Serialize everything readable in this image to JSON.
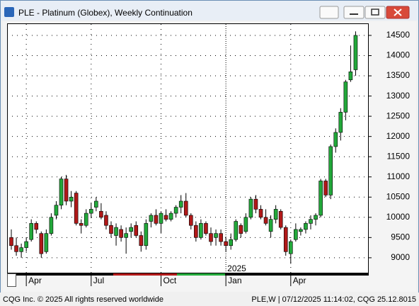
{
  "window_title": "PLE - Platinum (Globex), Weekly Continuation",
  "footer_left": "CQG Inc. © 2025 All rights reserved worldwide",
  "footer_right": "PLE,W | 07/12/2025 11:14:02, CQG 25.12.8015",
  "chart_data": {
    "type": "candlestick",
    "year_label": "2025",
    "categories": [
      null,
      null,
      null,
      "Apr",
      null,
      null,
      null,
      null,
      null,
      null,
      null,
      null,
      null,
      null,
      null,
      null,
      "Jul",
      null,
      null,
      null,
      null,
      null,
      null,
      null,
      null,
      null,
      null,
      null,
      null,
      null,
      "Oct",
      null,
      null,
      null,
      null,
      null,
      null,
      null,
      null,
      null,
      null,
      null,
      null,
      "Jan",
      null,
      null,
      null,
      null,
      null,
      null,
      null,
      null,
      null,
      null,
      null,
      null,
      "Apr",
      null,
      null,
      null,
      null,
      null,
      null,
      null,
      null,
      null,
      null,
      null,
      null,
      null
    ],
    "open": [
      9500,
      9300,
      9150,
      9250,
      9450,
      9850,
      9600,
      9150,
      9600,
      10050,
      10300,
      10950,
      10400,
      10600,
      9850,
      9800,
      10100,
      10250,
      10150,
      10050,
      9800,
      9550,
      9700,
      9500,
      9650,
      9800,
      9550,
      9300,
      9900,
      10050,
      9850,
      10050,
      9950,
      10100,
      10250,
      10400,
      10050,
      9800,
      9500,
      9850,
      9600,
      9500,
      9600,
      9400,
      9300,
      9450,
      9800,
      9650,
      10000,
      10450,
      10200,
      10000,
      9650,
      9950,
      10150,
      9750,
      9100,
      9450,
      9650,
      9700,
      9850,
      9950,
      10050,
      10900,
      10550,
      11750,
      12100,
      12600,
      13400,
      13650
    ],
    "high": [
      9700,
      9500,
      9350,
      9500,
      9950,
      9900,
      9650,
      9700,
      10100,
      10400,
      11000,
      11050,
      10650,
      10650,
      9950,
      10200,
      10350,
      10500,
      10350,
      10150,
      9900,
      9850,
      9800,
      9750,
      9850,
      9900,
      9650,
      9950,
      10100,
      10200,
      10150,
      10200,
      10150,
      10300,
      10550,
      10600,
      10100,
      9900,
      9950,
      9900,
      9750,
      9700,
      9700,
      9500,
      9600,
      9950,
      9850,
      10100,
      10500,
      10550,
      10300,
      10200,
      10050,
      10300,
      10200,
      9800,
      9450,
      9850,
      9750,
      9900,
      10050,
      10100,
      10950,
      10950,
      11800,
      12200,
      12700,
      13400,
      14250,
      14600
    ],
    "low": [
      9200,
      9050,
      9000,
      9150,
      9400,
      9600,
      9000,
      9100,
      9550,
      9950,
      10200,
      10300,
      10250,
      9800,
      9600,
      9750,
      10000,
      10150,
      9950,
      9700,
      9500,
      9300,
      9400,
      9100,
      9500,
      9500,
      9150,
      9200,
      9750,
      9800,
      9600,
      9900,
      9900,
      10000,
      10100,
      10000,
      9700,
      9400,
      9450,
      9550,
      9300,
      9300,
      9300,
      9150,
      9200,
      9400,
      9500,
      9600,
      9950,
      10100,
      9950,
      9800,
      9500,
      9850,
      9700,
      9050,
      8850,
      9400,
      9550,
      9600,
      9700,
      9800,
      10000,
      10500,
      10450,
      11600,
      11900,
      12400,
      13350,
      13500
    ],
    "close": [
      9300,
      9150,
      9250,
      9400,
      9850,
      9700,
      9100,
      9600,
      10000,
      10300,
      10950,
      10400,
      10500,
      9850,
      9800,
      10100,
      10200,
      10400,
      10000,
      9800,
      9600,
      9750,
      9500,
      9600,
      9750,
      9550,
      9300,
      9850,
      10050,
      9850,
      10100,
      9950,
      10100,
      10250,
      10400,
      10050,
      9800,
      9500,
      9850,
      9600,
      9400,
      9600,
      9400,
      9300,
      9450,
      9900,
      9600,
      10000,
      10450,
      10200,
      10000,
      9850,
      9950,
      10200,
      9750,
      9150,
      9400,
      9700,
      9700,
      9850,
      9950,
      10050,
      10900,
      10550,
      11750,
      12100,
      12600,
      13350,
      13600,
      14500
    ],
    "up_color": "#22a83a",
    "down_color": "#b01818",
    "ylim": [
      8630,
      14780
    ],
    "yticks": [
      9000,
      9500,
      10000,
      10500,
      11000,
      11500,
      12000,
      12500,
      13000,
      13500,
      14000,
      14500
    ],
    "grid": true
  }
}
